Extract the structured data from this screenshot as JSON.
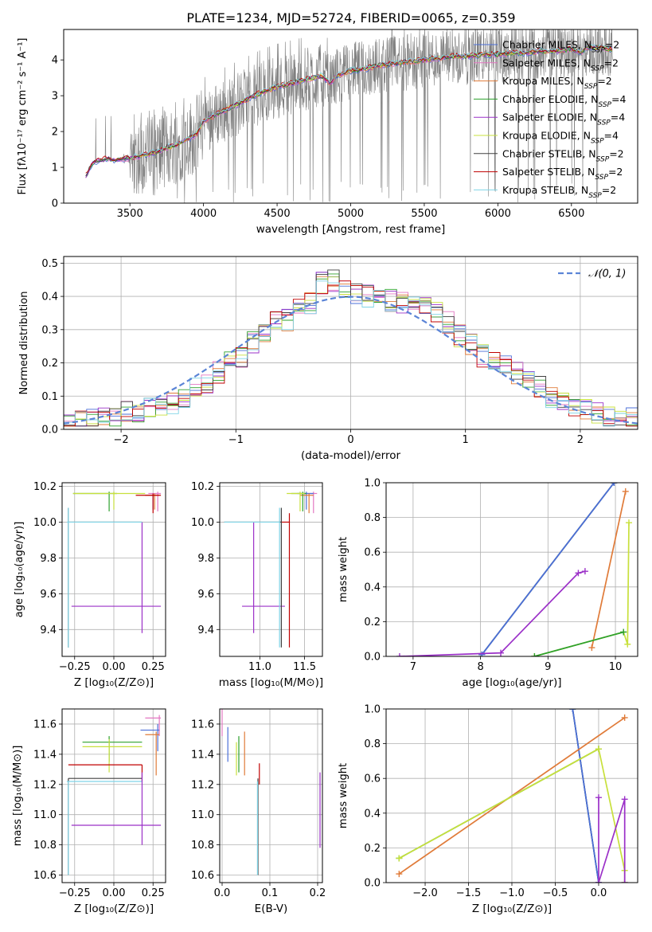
{
  "figure": {
    "title": "PLATE=1234, MJD=52724, FIBERID=0065, z=0.359"
  },
  "legend_entries": [
    {
      "label": "Chabrier MILES, N",
      "sub": "SSP",
      "tail": "=2",
      "color": "#4b6fd8"
    },
    {
      "label": "Salpeter MILES, N",
      "sub": "SSP",
      "tail": "=2",
      "color": "#e377c2"
    },
    {
      "label": "Kroupa MILES, N",
      "sub": "SSP",
      "tail": "=2",
      "color": "#e07b39"
    },
    {
      "label": "Chabrier ELODIE, N",
      "sub": "SSP",
      "tail": "=4",
      "color": "#2ca02c"
    },
    {
      "label": "Salpeter ELODIE, N",
      "sub": "SSP",
      "tail": "=4",
      "color": "#9b30c8"
    },
    {
      "label": "Kroupa ELODIE, N",
      "sub": "SSP",
      "tail": "=4",
      "color": "#c8e03c"
    },
    {
      "label": "Chabrier STELIB, N",
      "sub": "SSP",
      "tail": "=2",
      "color": "#404040"
    },
    {
      "label": "Salpeter STELIB, N",
      "sub": "SSP",
      "tail": "=2",
      "color": "#c00000"
    },
    {
      "label": "Kroupa STELIB, N",
      "sub": "SSP",
      "tail": "=2",
      "color": "#7fd4e6"
    }
  ],
  "chart_data": [
    {
      "id": "spectrum",
      "type": "line",
      "xlabel": "wavelength [Angstrom, rest frame]",
      "ylabel": "Flux [fλ10⁻¹⁷ erg cm⁻² s⁻¹ A⁻¹]",
      "xlim": [
        3050,
        6950
      ],
      "ylim": [
        0,
        4.85
      ],
      "xticks": [
        3500,
        4000,
        4500,
        5000,
        5500,
        6000,
        6500
      ],
      "yticks": [
        0,
        1,
        2,
        3,
        4
      ],
      "data_color": "#808080",
      "model_continuum": {
        "x": [
          3200,
          3250,
          3300,
          3350,
          3400,
          3450,
          3500,
          3550,
          3600,
          3650,
          3700,
          3750,
          3800,
          3850,
          3900,
          3950,
          4000,
          4100,
          4200,
          4300,
          4400,
          4500,
          4600,
          4700,
          4800,
          4862,
          4900,
          5000,
          5100,
          5200,
          5300,
          5400,
          5500,
          5600,
          5700,
          5800,
          5900,
          6000,
          6100,
          6200,
          6300,
          6400,
          6500,
          6563,
          6600,
          6700,
          6780
        ],
        "y": [
          0.75,
          1.15,
          1.2,
          1.25,
          1.2,
          1.25,
          1.25,
          1.3,
          1.35,
          1.4,
          1.45,
          1.55,
          1.6,
          1.7,
          1.8,
          1.9,
          2.3,
          2.5,
          2.7,
          2.9,
          3.1,
          3.25,
          3.35,
          3.45,
          3.55,
          3.35,
          3.55,
          3.7,
          3.75,
          3.85,
          3.9,
          3.95,
          4.0,
          4.05,
          4.1,
          4.1,
          4.15,
          4.15,
          4.2,
          4.2,
          4.25,
          4.25,
          4.3,
          4.2,
          4.35,
          4.35,
          4.3
        ]
      }
    },
    {
      "id": "residuals",
      "type": "line",
      "xlabel": "(data-model)/error",
      "ylabel": "Normed distribution",
      "xlim": [
        -2.5,
        2.5
      ],
      "ylim": [
        0,
        0.52
      ],
      "xticks": [
        -2,
        -1,
        0,
        1,
        2
      ],
      "yticks": [
        0.0,
        0.1,
        0.2,
        0.3,
        0.4,
        0.5
      ],
      "reference_curve": {
        "name": "𝒩(0, 1)",
        "color": "#5b84d6"
      },
      "histogram_x": [
        -2.5,
        -2.4,
        -2.3,
        -2.2,
        -2.1,
        -2.0,
        -1.9,
        -1.8,
        -1.7,
        -1.6,
        -1.5,
        -1.4,
        -1.3,
        -1.2,
        -1.1,
        -1.0,
        -0.9,
        -0.8,
        -0.7,
        -0.6,
        -0.5,
        -0.4,
        -0.3,
        -0.2,
        -0.1,
        0.0,
        0.1,
        0.2,
        0.3,
        0.4,
        0.5,
        0.6,
        0.7,
        0.8,
        0.9,
        1.0,
        1.1,
        1.2,
        1.3,
        1.4,
        1.5,
        1.6,
        1.7,
        1.8,
        1.9,
        2.0,
        2.1,
        2.2,
        2.3,
        2.4,
        2.5
      ],
      "histogram_base": [
        0.02,
        0.02,
        0.03,
        0.03,
        0.04,
        0.05,
        0.05,
        0.06,
        0.07,
        0.08,
        0.1,
        0.12,
        0.14,
        0.17,
        0.2,
        0.22,
        0.26,
        0.28,
        0.32,
        0.33,
        0.36,
        0.38,
        0.44,
        0.45,
        0.42,
        0.41,
        0.4,
        0.4,
        0.39,
        0.38,
        0.38,
        0.37,
        0.35,
        0.32,
        0.28,
        0.26,
        0.22,
        0.2,
        0.19,
        0.17,
        0.15,
        0.13,
        0.1,
        0.08,
        0.07,
        0.06,
        0.05,
        0.04,
        0.03,
        0.03
      ]
    },
    {
      "id": "age_vs_Z",
      "type": "scatter",
      "xlabel": "Z [log₁₀(Z/Z⊙)]",
      "ylabel": "age  [log₁₀(age/yr)]",
      "xlim": [
        -0.33,
        0.33
      ],
      "ylim": [
        9.25,
        10.22
      ],
      "xticks": [
        "-0.25",
        "0.00",
        "0.25"
      ],
      "xtick_values": [
        -0.25,
        0,
        0.25
      ],
      "yticks": [
        "9.4",
        "9.6",
        "9.8",
        "10.0",
        "10.2"
      ],
      "ytick_values": [
        9.4,
        9.6,
        9.8,
        10.0,
        10.2
      ]
    },
    {
      "id": "age_vs_mass",
      "type": "scatter",
      "xlabel": "mass [log₁₀(M/M⊙)]",
      "xlim": [
        10.55,
        11.7
      ],
      "ylim": [
        9.25,
        10.22
      ],
      "xticks": [
        "11.0",
        "11.5"
      ],
      "xtick_values": [
        11.0,
        11.5
      ],
      "yticks": [
        "9.4",
        "9.6",
        "9.8",
        "10.0",
        "10.2"
      ],
      "ytick_values": [
        9.4,
        9.6,
        9.8,
        10.0,
        10.2
      ]
    },
    {
      "id": "weight_vs_age",
      "type": "line",
      "xlabel": "age  [log₁₀(age/yr)]",
      "ylabel": "mass weight",
      "xlim": [
        6.6,
        10.33
      ],
      "ylim": [
        0,
        1
      ],
      "xticks": [
        "7",
        "8",
        "9",
        "10"
      ],
      "xtick_values": [
        7,
        8,
        9,
        10
      ],
      "yticks": [
        "0.0",
        "0.2",
        "0.4",
        "0.6",
        "0.8",
        "1.0"
      ],
      "ytick_values": [
        0,
        0.2,
        0.4,
        0.6,
        0.8,
        1.0
      ],
      "series": [
        {
          "color": "#7fd4e6",
          "x": [
            8.02,
            9.98
          ],
          "y": [
            0.01,
            1.0
          ]
        },
        {
          "color": "#404040",
          "x": [
            8.02,
            9.98
          ],
          "y": [
            0.01,
            1.0
          ]
        },
        {
          "color": "#4b6fd8",
          "x": [
            8.02,
            9.98
          ],
          "y": [
            0.01,
            1.0
          ]
        },
        {
          "color": "#9b30c8",
          "x": [
            6.8,
            8.3,
            9.45,
            9.55
          ],
          "y": [
            0.0,
            0.02,
            0.48,
            0.49
          ]
        },
        {
          "color": "#e07b39",
          "x": [
            9.65,
            10.15
          ],
          "y": [
            0.05,
            0.95
          ]
        },
        {
          "color": "#c8e03c",
          "x": [
            8.8,
            10.12,
            10.18,
            10.2
          ],
          "y": [
            0.0,
            0.14,
            0.07,
            0.77
          ]
        },
        {
          "color": "#2ca02c",
          "x": [
            8.8,
            10.12
          ],
          "y": [
            0.0,
            0.14
          ]
        }
      ]
    },
    {
      "id": "mass_vs_Z",
      "type": "scatter",
      "xlabel": "Z [log₁₀(Z/Z⊙)]",
      "ylabel": "mass [log₁₀(M/M⊙)]",
      "xlim": [
        -0.33,
        0.33
      ],
      "ylim": [
        10.55,
        11.7
      ],
      "xticks": [
        "-0.25",
        "0.00",
        "0.25"
      ],
      "xtick_values": [
        -0.25,
        0,
        0.25
      ],
      "yticks": [
        "10.6",
        "10.8",
        "11.0",
        "11.2",
        "11.4",
        "11.6"
      ],
      "ytick_values": [
        10.6,
        10.8,
        11.0,
        11.2,
        11.4,
        11.6
      ]
    },
    {
      "id": "mass_vs_ebv",
      "type": "scatter",
      "xlabel": "E(B-V)",
      "xlim": [
        -0.005,
        0.21
      ],
      "ylim": [
        10.55,
        11.7
      ],
      "xticks": [
        "0.0",
        "0.1",
        "0.2"
      ],
      "xtick_values": [
        0.0,
        0.1,
        0.2
      ],
      "yticks": [
        "10.6",
        "10.8",
        "11.0",
        "11.2",
        "11.4",
        "11.6"
      ],
      "ytick_values": [
        10.6,
        10.8,
        11.0,
        11.2,
        11.4,
        11.6
      ]
    },
    {
      "id": "weight_vs_Z",
      "type": "line",
      "xlabel": "Z [log₁₀(Z/Z⊙)]",
      "ylabel": "mass weight",
      "xlim": [
        -2.45,
        0.45
      ],
      "ylim": [
        0,
        1
      ],
      "xticks": [
        "-2.0",
        "-1.5",
        "-1.0",
        "-0.5",
        "0.0"
      ],
      "xtick_values": [
        -2.0,
        -1.5,
        -1.0,
        -0.5,
        0.0
      ],
      "yticks": [
        "0.0",
        "0.2",
        "0.4",
        "0.6",
        "0.8",
        "1.0"
      ],
      "ytick_values": [
        0,
        0.2,
        0.4,
        0.6,
        0.8,
        1.0
      ],
      "series": [
        {
          "color": "#7fd4e6",
          "x": [
            -0.3,
            0.0
          ],
          "y": [
            1.0,
            0.0
          ]
        },
        {
          "color": "#404040",
          "x": [
            -0.3,
            0.0
          ],
          "y": [
            1.0,
            0.0
          ]
        },
        {
          "color": "#4b6fd8",
          "x": [
            -0.3,
            0.0
          ],
          "y": [
            1.0,
            0.0
          ]
        },
        {
          "color": "#e07b39",
          "x": [
            -2.3,
            0.3
          ],
          "y": [
            0.05,
            0.95
          ]
        },
        {
          "color": "#2ca02c",
          "x": [
            -2.3,
            0.0
          ],
          "y": [
            0.14,
            0.77
          ]
        },
        {
          "color": "#c8e03c",
          "x": [
            -2.3,
            0.0,
            0.3,
            0.3
          ],
          "y": [
            0.14,
            0.77,
            0.07,
            0.0
          ]
        },
        {
          "color": "#9b30c8",
          "x": [
            0.0,
            0.0,
            0.3,
            0.3
          ],
          "y": [
            0.49,
            0.0,
            0.48,
            0.0
          ]
        }
      ]
    }
  ],
  "error_bars": {
    "age_vs_Z": [
      {
        "color": "#4b6fd8",
        "x": 0.25,
        "y": 10.15,
        "xlo": 0.2,
        "xhi": 0.29,
        "ylo": 10.07,
        "yhi": 10.16
      },
      {
        "color": "#e377c2",
        "x": 0.28,
        "y": 10.16,
        "xlo": 0.22,
        "xhi": 0.3,
        "ylo": 10.06,
        "yhi": 10.17
      },
      {
        "color": "#e07b39",
        "x": 0.26,
        "y": 10.15,
        "xlo": 0.2,
        "xhi": 0.29,
        "ylo": 10.07,
        "yhi": 10.16
      },
      {
        "color": "#2ca02c",
        "x": -0.03,
        "y": 10.16,
        "xlo": -0.26,
        "xhi": 0.02,
        "ylo": 10.06,
        "yhi": 10.17
      },
      {
        "color": "#c8e03c",
        "x": 0.0,
        "y": 10.16,
        "xlo": -0.26,
        "xhi": 0.2,
        "ylo": 10.07,
        "yhi": 10.17
      },
      {
        "color": "#c00000",
        "x": 0.25,
        "y": 10.15,
        "xlo": 0.14,
        "xhi": 0.3,
        "ylo": 10.05,
        "yhi": 10.16
      },
      {
        "color": "#9b30c8",
        "x": 0.18,
        "y": 9.53,
        "xlo": -0.27,
        "xhi": 0.3,
        "ylo": 9.38,
        "yhi": 10.0
      },
      {
        "color": "#404040",
        "x": -0.29,
        "y": 10.0,
        "xlo": -0.29,
        "xhi": 0.18,
        "ylo": 9.3,
        "yhi": 10.08
      },
      {
        "color": "#7fd4e6",
        "x": -0.29,
        "y": 10.0,
        "xlo": -0.3,
        "xhi": 0.18,
        "ylo": 9.3,
        "yhi": 10.08
      }
    ],
    "age_vs_mass": [
      {
        "color": "#e377c2",
        "x": 11.6,
        "y": 10.16,
        "xlo": 11.52,
        "xhi": 11.64,
        "ylo": 10.05,
        "yhi": 10.17
      },
      {
        "color": "#4b6fd8",
        "x": 11.52,
        "y": 10.16,
        "xlo": 11.42,
        "xhi": 11.6,
        "ylo": 10.07,
        "yhi": 10.17
      },
      {
        "color": "#e07b39",
        "x": 11.55,
        "y": 10.15,
        "xlo": 11.45,
        "xhi": 11.6,
        "ylo": 10.05,
        "yhi": 10.16
      },
      {
        "color": "#2ca02c",
        "x": 11.48,
        "y": 10.16,
        "xlo": 11.35,
        "xhi": 11.52,
        "ylo": 10.06,
        "yhi": 10.17
      },
      {
        "color": "#c8e03c",
        "x": 11.45,
        "y": 10.16,
        "xlo": 11.3,
        "xhi": 11.5,
        "ylo": 10.06,
        "yhi": 10.17
      },
      {
        "color": "#c00000",
        "x": 11.33,
        "y": 10.0,
        "xlo": 11.22,
        "xhi": 11.33,
        "ylo": 9.3,
        "yhi": 10.05
      },
      {
        "color": "#9b30c8",
        "x": 10.93,
        "y": 9.53,
        "xlo": 10.8,
        "xhi": 11.28,
        "ylo": 9.38,
        "yhi": 10.0
      },
      {
        "color": "#404040",
        "x": 11.24,
        "y": 10.0,
        "xlo": 10.6,
        "xhi": 11.24,
        "ylo": 9.3,
        "yhi": 10.08
      },
      {
        "color": "#7fd4e6",
        "x": 11.22,
        "y": 10.0,
        "xlo": 10.6,
        "xhi": 11.22,
        "ylo": 9.3,
        "yhi": 10.08
      }
    ],
    "mass_vs_Z": [
      {
        "color": "#e377c2",
        "x": 0.29,
        "y": 11.64,
        "xlo": 0.2,
        "xhi": 0.3,
        "ylo": 11.52,
        "yhi": 11.66
      },
      {
        "color": "#4b6fd8",
        "x": 0.28,
        "y": 11.56,
        "xlo": 0.17,
        "xhi": 0.29,
        "ylo": 11.42,
        "yhi": 11.6
      },
      {
        "color": "#e07b39",
        "x": 0.27,
        "y": 11.53,
        "xlo": 0.2,
        "xhi": 0.29,
        "ylo": 11.26,
        "yhi": 11.55
      },
      {
        "color": "#2ca02c",
        "x": -0.03,
        "y": 11.48,
        "xlo": -0.2,
        "xhi": 0.18,
        "ylo": 11.35,
        "yhi": 11.52
      },
      {
        "color": "#c8e03c",
        "x": -0.03,
        "y": 11.45,
        "xlo": -0.2,
        "xhi": 0.18,
        "ylo": 11.28,
        "yhi": 11.5
      },
      {
        "color": "#c00000",
        "x": 0.18,
        "y": 11.33,
        "xlo": -0.29,
        "xhi": 0.18,
        "ylo": 11.22,
        "yhi": 11.33
      },
      {
        "color": "#404040",
        "x": -0.29,
        "y": 11.24,
        "xlo": -0.29,
        "xhi": 0.18,
        "ylo": 10.6,
        "yhi": 11.24
      },
      {
        "color": "#7fd4e6",
        "x": -0.29,
        "y": 11.22,
        "xlo": -0.3,
        "xhi": 0.18,
        "ylo": 10.6,
        "yhi": 11.22
      },
      {
        "color": "#9b30c8",
        "x": 0.18,
        "y": 10.93,
        "xlo": -0.27,
        "xhi": 0.3,
        "ylo": 10.8,
        "yhi": 11.28
      }
    ],
    "mass_vs_ebv": [
      {
        "color": "#e377c2",
        "x": 0.0,
        "y": 11.64,
        "xlo": 0.0,
        "xhi": 0.0,
        "ylo": 11.52,
        "yhi": 11.7
      },
      {
        "color": "#4b6fd8",
        "x": 0.012,
        "y": 11.52,
        "xlo": 0.012,
        "xhi": 0.012,
        "ylo": 11.35,
        "yhi": 11.58
      },
      {
        "color": "#2ca02c",
        "x": 0.035,
        "y": 11.45,
        "xlo": 0.035,
        "xhi": 0.035,
        "ylo": 11.28,
        "yhi": 11.52
      },
      {
        "color": "#c8e03c",
        "x": 0.03,
        "y": 11.42,
        "xlo": 0.03,
        "xhi": 0.03,
        "ylo": 11.26,
        "yhi": 11.48
      },
      {
        "color": "#e07b39",
        "x": 0.047,
        "y": 11.48,
        "xlo": 0.047,
        "xhi": 0.047,
        "ylo": 11.26,
        "yhi": 11.55
      },
      {
        "color": "#c00000",
        "x": 0.078,
        "y": 11.3,
        "xlo": 0.078,
        "xhi": 0.078,
        "ylo": 11.2,
        "yhi": 11.34
      },
      {
        "color": "#404040",
        "x": 0.075,
        "y": 11.24,
        "xlo": 0.075,
        "xhi": 0.075,
        "ylo": 10.6,
        "yhi": 11.24
      },
      {
        "color": "#7fd4e6",
        "x": 0.074,
        "y": 11.22,
        "xlo": 0.074,
        "xhi": 0.074,
        "ylo": 10.6,
        "yhi": 11.22
      },
      {
        "color": "#9b30c8",
        "x": 0.205,
        "y": 11.0,
        "xlo": 0.205,
        "xhi": 0.205,
        "ylo": 10.78,
        "yhi": 11.28
      }
    ]
  }
}
